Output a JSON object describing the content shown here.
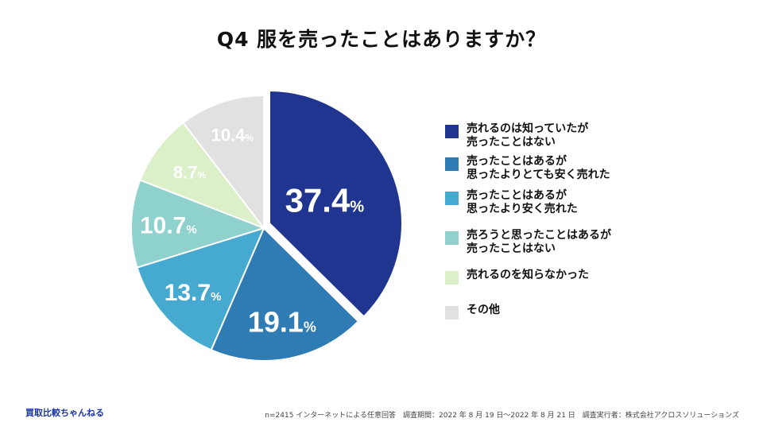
{
  "title": "Q4 服を売ったことはありますか？",
  "chart_data": {
    "type": "pie",
    "title": "Q4 服を売ったことはありますか？",
    "unit": "%",
    "slices": [
      {
        "label": "売れるのは知っていたが\n売ったことはない",
        "value": 37.4,
        "display": "37.4",
        "color": "#1f3590"
      },
      {
        "label": "売ったことはあるが\n思ったよりとても安く売れた",
        "value": 19.1,
        "display": "19.1",
        "color": "#2f7bb4"
      },
      {
        "label": "売ったことはあるが\n思ったより安く売れた",
        "value": 13.7,
        "display": "13.7",
        "color": "#46a9cf"
      },
      {
        "label": "売ろうと思ったことはあるが\n売ったことはない",
        "value": 10.7,
        "display": "10.7",
        "color": "#8fd1cd"
      },
      {
        "label": "売れるのを知らなかった",
        "value": 8.7,
        "display": "8.7",
        "color": "#dbefc9"
      },
      {
        "label": "その他",
        "value": 10.4,
        "display": "10.4",
        "color": "#e1e1e1"
      }
    ],
    "legend_position": "right"
  },
  "brand": "買取比較ちゃんねる",
  "footnote": "n=2415 インターネットによる任意回答　調査期間：2022 年 8 月 19 日〜2022 年 8 月 21 日　調査実行者：株式会社アクロスソリューションズ"
}
